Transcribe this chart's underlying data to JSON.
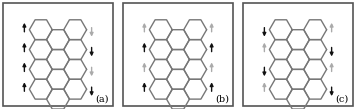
{
  "fig_width": 3.59,
  "fig_height": 1.09,
  "dpi": 100,
  "panels": [
    "(a)",
    "(b)",
    "(c)"
  ],
  "background_color": "#ffffff",
  "border_color": "#555555",
  "hex_color": "#777777",
  "hex_linewidth": 1.0,
  "arrow_dark": "#111111",
  "arrow_light": "#aaaaaa",
  "panel_label_fontsize": 7,
  "panel_a_left": [
    true,
    true,
    true,
    true,
    true
  ],
  "panel_a_right": [
    false,
    false,
    false,
    false,
    false
  ],
  "panel_a_left_dark": [
    true,
    true,
    true,
    true,
    true
  ],
  "panel_a_right_dark": [
    false,
    true,
    false,
    true,
    false
  ],
  "panel_b_left": [
    true,
    true,
    true,
    true,
    true
  ],
  "panel_b_right": [
    true,
    true,
    true,
    true,
    true
  ],
  "panel_b_left_dark": [
    false,
    true,
    false,
    true,
    false
  ],
  "panel_b_right_dark": [
    false,
    true,
    false,
    true,
    false
  ],
  "panel_c_left": [
    false,
    true,
    false,
    true,
    false
  ],
  "panel_c_right": [
    true,
    false,
    true,
    false,
    true
  ],
  "panel_c_left_dark": [
    true,
    false,
    true,
    false,
    true
  ],
  "panel_c_right_dark": [
    false,
    true,
    false,
    true,
    false
  ]
}
